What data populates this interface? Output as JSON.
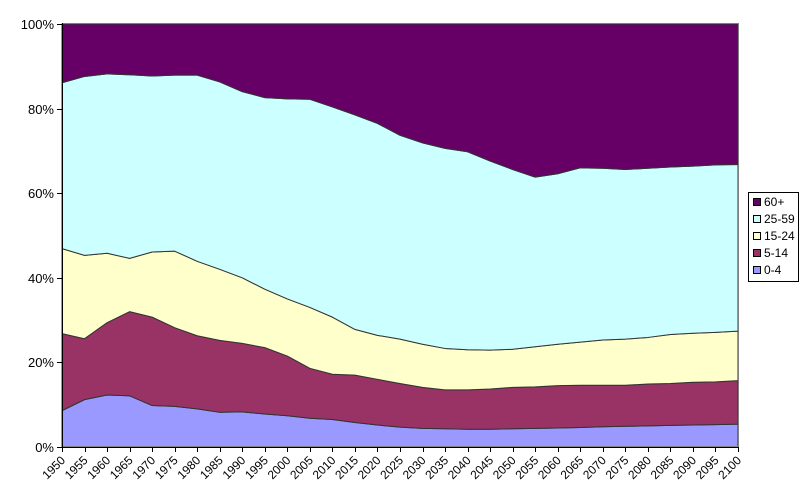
{
  "window": {
    "background": "#FFFFFF"
  },
  "chart_data": {
    "type": "area",
    "stacked": true,
    "percent_stacked": true,
    "title": "",
    "xlabel": "",
    "ylabel": "",
    "grid": false,
    "ylim": [
      0,
      100
    ],
    "y_tick_labels": [
      "0%",
      "20%",
      "40%",
      "60%",
      "80%",
      "100%"
    ],
    "x_categories": [
      "1950",
      "1955",
      "1960",
      "1965",
      "1970",
      "1975",
      "1980",
      "1985",
      "1990",
      "1995",
      "2000",
      "2005",
      "2010",
      "2015",
      "2020",
      "2025",
      "2030",
      "2035",
      "2040",
      "2045",
      "2050",
      "2055",
      "2060",
      "2065",
      "2070",
      "2075",
      "2080",
      "2085",
      "2090",
      "2095",
      "2100"
    ],
    "series": [
      {
        "name": "0-4",
        "color": "#9999FF",
        "values": [
          8.6,
          11.2,
          12.3,
          12.1,
          9.8,
          9.6,
          9.0,
          8.2,
          8.3,
          7.8,
          7.4,
          6.8,
          6.5,
          5.8,
          5.2,
          4.7,
          4.4,
          4.3,
          4.2,
          4.2,
          4.3,
          4.4,
          4.5,
          4.6,
          4.8,
          4.9,
          5.0,
          5.1,
          5.2,
          5.3,
          5.4
        ]
      },
      {
        "name": "5-14",
        "color": "#993366",
        "values": [
          18.2,
          14.4,
          17.1,
          19.9,
          20.9,
          18.6,
          17.3,
          17.0,
          16.2,
          15.7,
          14.1,
          11.8,
          10.7,
          11.2,
          10.8,
          10.3,
          9.7,
          9.2,
          9.3,
          9.5,
          9.8,
          9.8,
          10.0,
          10.0,
          9.8,
          9.7,
          9.9,
          9.9,
          10.1,
          10.1,
          10.3
        ]
      },
      {
        "name": "15-24",
        "color": "#FFFFCC",
        "values": [
          20.1,
          19.7,
          16.4,
          12.6,
          15.4,
          18.1,
          17.6,
          16.8,
          15.5,
          13.8,
          13.5,
          14.4,
          13.5,
          10.8,
          10.4,
          10.5,
          10.2,
          9.8,
          9.5,
          9.2,
          9.0,
          9.5,
          9.8,
          10.2,
          10.7,
          10.9,
          11.0,
          11.6,
          11.6,
          11.7,
          11.7
        ]
      },
      {
        "name": "25-59",
        "color": "#CCFFFF",
        "values": [
          39.2,
          42.3,
          42.4,
          43.4,
          41.6,
          41.6,
          44.0,
          44.3,
          44.0,
          45.3,
          47.3,
          49.2,
          49.7,
          50.7,
          50.1,
          48.2,
          47.6,
          47.3,
          46.8,
          44.7,
          42.5,
          40.1,
          40.3,
          41.2,
          40.6,
          40.1,
          40.0,
          39.6,
          39.5,
          39.6,
          39.4
        ]
      },
      {
        "name": "60+",
        "color": "#660066",
        "values": [
          13.9,
          12.4,
          11.8,
          12.0,
          12.3,
          12.1,
          12.1,
          13.7,
          16.0,
          17.4,
          17.7,
          17.8,
          19.6,
          21.5,
          23.5,
          26.3,
          28.1,
          29.4,
          30.2,
          32.4,
          34.4,
          36.2,
          35.4,
          34.0,
          34.1,
          34.4,
          34.1,
          33.8,
          33.6,
          33.3,
          33.2
        ]
      }
    ],
    "legend": {
      "position": "right",
      "order_top_to_bottom": [
        "60+",
        "25-59",
        "15-24",
        "5-14",
        "0-4"
      ]
    },
    "colors": {
      "plot_border": "#808080",
      "axis_line": "#000000",
      "area_outline": "#333333",
      "legend_border": "#000000",
      "legend_background": "#FFFFFF"
    }
  }
}
